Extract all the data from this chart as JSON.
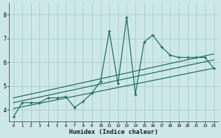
{
  "xlabel": "Humidex (Indice chaleur)",
  "ylabel": "",
  "background_color": "#cce8e5",
  "grid_color": "#aacfcc",
  "line_color": "#1e6b5e",
  "xlim": [
    -0.5,
    23.5
  ],
  "ylim": [
    3.5,
    8.5
  ],
  "xticks": [
    0,
    1,
    2,
    3,
    4,
    5,
    6,
    7,
    8,
    9,
    10,
    11,
    12,
    13,
    14,
    15,
    16,
    17,
    18,
    19,
    20,
    21,
    22,
    23
  ],
  "yticks": [
    4,
    5,
    6,
    7,
    8
  ],
  "series1_x": [
    0,
    1,
    2,
    3,
    4,
    5,
    6,
    7,
    8,
    9,
    10,
    11,
    12,
    13,
    14,
    15,
    16,
    17,
    18,
    19,
    20,
    21,
    22,
    23
  ],
  "series1_y": [
    3.7,
    4.3,
    4.3,
    4.3,
    4.5,
    4.5,
    4.55,
    4.1,
    4.35,
    4.7,
    5.2,
    7.3,
    5.1,
    7.9,
    4.65,
    6.85,
    7.15,
    6.65,
    6.3,
    6.2,
    6.2,
    6.2,
    6.2,
    5.75
  ],
  "series2_x": [
    0,
    23
  ],
  "series2_y": [
    4.05,
    5.75
  ],
  "series3_x": [
    0,
    23
  ],
  "series3_y": [
    4.3,
    6.1
  ],
  "series4_x": [
    0,
    23
  ],
  "series4_y": [
    4.5,
    6.35
  ]
}
